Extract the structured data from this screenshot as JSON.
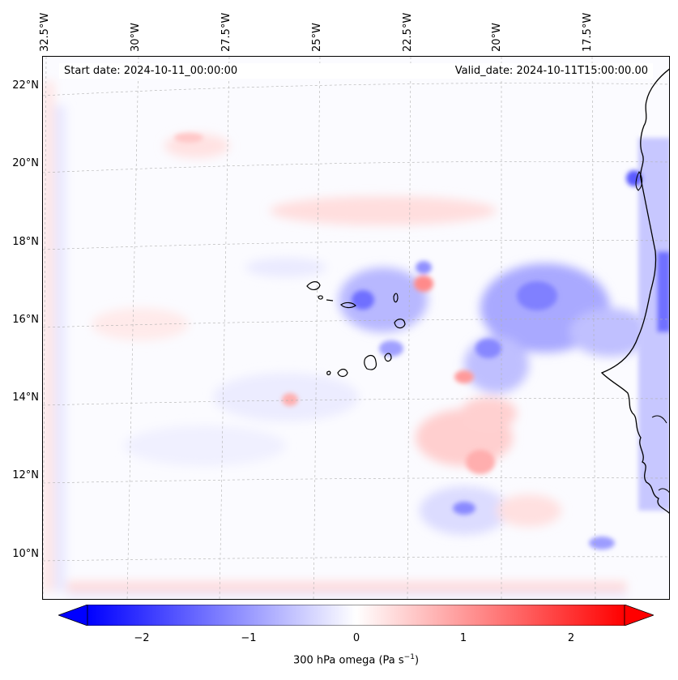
{
  "map": {
    "start_date": "Start date: 2024-10-11_00:00:00",
    "valid_date": "Valid_date: 2024-10-11T15:00:00.00",
    "lon_labels": [
      "32.5°W",
      "30°W",
      "27.5°W",
      "25°W",
      "22.5°W",
      "20°W",
      "17.5°W"
    ],
    "lat_labels": [
      "22°N",
      "20°N",
      "18°N",
      "16°N",
      "14°N",
      "12°N",
      "10°N"
    ],
    "field": "300 hPa omega",
    "colors": {
      "negative": "#0000ff",
      "neutral": "#ffffff",
      "positive": "#ff0000",
      "coast": "#000000"
    }
  },
  "colorbar": {
    "ticks": [
      "−2",
      "−1",
      "0",
      "1",
      "2"
    ],
    "tick_values": [
      -2,
      -1,
      0,
      1,
      2
    ],
    "range": [
      -2.5,
      2.5
    ],
    "label": "300 hPa omega (Pa s",
    "label_sup": "−1",
    "label_end": ")"
  }
}
